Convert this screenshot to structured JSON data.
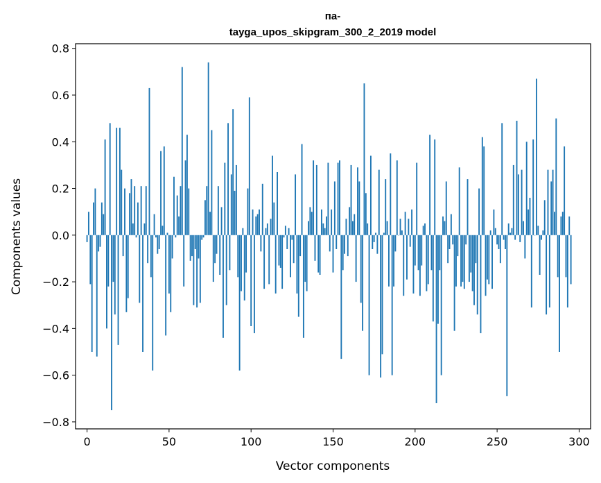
{
  "chart_data": {
    "type": "bar",
    "title_lines": [
      "па-",
      "tayga_upos_skipgram_300_2_2019 model"
    ],
    "xlabel": "Vector components",
    "ylabel": "Components values",
    "xlim": [
      -7,
      307
    ],
    "ylim": [
      -0.83,
      0.82
    ],
    "xticks": [
      0,
      50,
      100,
      150,
      200,
      250,
      300
    ],
    "yticks": [
      0.8,
      0.6,
      0.4,
      0.2,
      0.0,
      -0.2,
      -0.4,
      -0.6,
      -0.8
    ],
    "ytick_labels": [
      "0.8",
      "0.6",
      "0.4",
      "0.2",
      "0.0",
      "−0.2",
      "−0.4",
      "−0.6",
      "−0.8"
    ],
    "bar_color": "#1f77b4",
    "x": "0..299",
    "values": [
      -0.03,
      0.1,
      -0.21,
      -0.5,
      0.14,
      0.2,
      -0.52,
      -0.07,
      -0.05,
      0.14,
      0.09,
      0.41,
      -0.4,
      -0.22,
      0.48,
      -0.75,
      -0.2,
      -0.34,
      0.46,
      -0.47,
      0.46,
      0.28,
      -0.09,
      0.2,
      -0.33,
      -0.27,
      0.18,
      0.24,
      0.05,
      0.21,
      -0.01,
      0.14,
      -0.29,
      0.21,
      -0.5,
      0.05,
      0.21,
      -0.12,
      0.63,
      -0.18,
      -0.58,
      0.09,
      -0.01,
      -0.08,
      -0.06,
      0.36,
      0.04,
      0.38,
      -0.43,
      0.01,
      -0.25,
      -0.33,
      -0.1,
      0.25,
      -0.01,
      0.17,
      0.08,
      0.21,
      0.72,
      -0.22,
      0.32,
      0.43,
      0.2,
      -0.11,
      -0.09,
      -0.3,
      -0.06,
      -0.31,
      -0.1,
      -0.29,
      -0.02,
      -0.01,
      0.15,
      0.21,
      0.74,
      0.1,
      0.45,
      -0.2,
      -0.12,
      -0.08,
      0.21,
      -0.17,
      0.12,
      -0.44,
      0.31,
      -0.3,
      0.48,
      -0.15,
      0.26,
      0.54,
      0.19,
      0.3,
      -0.18,
      -0.58,
      -0.24,
      0.03,
      -0.28,
      -0.16,
      0.2,
      0.59,
      -0.39,
      0.11,
      -0.42,
      0.08,
      0.09,
      0.11,
      -0.07,
      0.22,
      -0.23,
      0.03,
      0.05,
      -0.21,
      0.07,
      0.34,
      0.14,
      -0.25,
      0.27,
      -0.13,
      -0.14,
      -0.23,
      -0.01,
      0.04,
      -0.06,
      0.03,
      -0.18,
      -0.02,
      -0.12,
      0.26,
      -0.25,
      -0.35,
      -0.09,
      0.39,
      -0.44,
      -0.2,
      -0.24,
      0.06,
      0.12,
      0.1,
      0.32,
      -0.11,
      0.3,
      -0.16,
      -0.17,
      0.11,
      0.05,
      0.03,
      0.08,
      0.31,
      -0.07,
      0.11,
      -0.16,
      0.23,
      -0.06,
      0.31,
      0.32,
      -0.53,
      -0.15,
      -0.08,
      0.07,
      -0.09,
      0.12,
      0.3,
      0.06,
      0.09,
      -0.2,
      0.29,
      0.23,
      -0.29,
      -0.41,
      0.65,
      0.18,
      0.05,
      -0.6,
      0.34,
      -0.06,
      -0.03,
      0.01,
      -0.08,
      0.28,
      -0.61,
      -0.51,
      0.01,
      0.24,
      0.06,
      -0.22,
      0.35,
      -0.6,
      -0.22,
      -0.07,
      0.32,
      0.0,
      0.07,
      0.02,
      -0.26,
      0.1,
      -0.19,
      0.07,
      -0.05,
      0.11,
      -0.25,
      -0.13,
      0.31,
      -0.15,
      -0.26,
      -0.13,
      0.04,
      0.05,
      -0.24,
      -0.21,
      0.43,
      -0.15,
      -0.37,
      0.41,
      -0.72,
      -0.38,
      -0.15,
      -0.6,
      0.08,
      0.06,
      0.23,
      -0.12,
      -0.06,
      0.09,
      -0.04,
      -0.41,
      -0.22,
      -0.09,
      0.29,
      -0.22,
      -0.2,
      -0.23,
      -0.04,
      0.24,
      -0.2,
      -0.16,
      -0.24,
      -0.3,
      -0.12,
      -0.34,
      0.2,
      -0.42,
      0.42,
      0.38,
      -0.26,
      -0.19,
      -0.21,
      0.02,
      -0.23,
      0.11,
      0.03,
      -0.04,
      -0.06,
      -0.12,
      0.48,
      -0.02,
      -0.06,
      -0.69,
      0.05,
      0.01,
      0.03,
      0.3,
      -0.02,
      0.49,
      0.26,
      -0.03,
      0.28,
      0.06,
      -0.1,
      0.4,
      0.11,
      0.16,
      -0.31,
      0.41,
      0.0,
      0.67,
      0.04,
      -0.17,
      -0.02,
      0.02,
      0.15,
      -0.34,
      0.28,
      -0.31,
      0.23,
      0.28,
      0.1,
      0.5,
      -0.18,
      -0.5,
      0.08,
      0.1,
      0.38,
      -0.18,
      -0.31,
      0.08,
      -0.21
    ]
  }
}
